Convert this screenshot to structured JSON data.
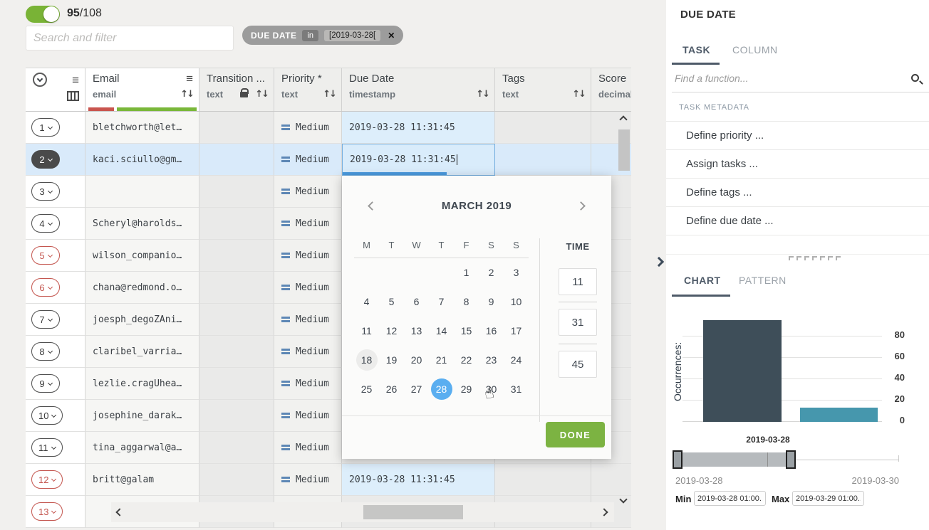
{
  "toolbar": {
    "toggle_count": "95",
    "toggle_total": "/108",
    "search_placeholder": "Search and filter",
    "chip": {
      "field": "DUE DATE",
      "op": "in",
      "value": "[2019-03-28[",
      "close": "✕"
    }
  },
  "table": {
    "columns": [
      {
        "name": "Email",
        "type": "email"
      },
      {
        "name": "Transition ...",
        "type": "text",
        "locked": true
      },
      {
        "name": "Priority *",
        "type": "text"
      },
      {
        "name": "Due Date",
        "type": "timestamp"
      },
      {
        "name": "Tags",
        "type": "text"
      },
      {
        "name": "Score",
        "type": "decimal"
      }
    ],
    "rows": [
      {
        "num": "1",
        "flag": "normal",
        "email": "bletchworth@let…",
        "priority": "Medium",
        "due": "2019-03-28 11:31:45",
        "due_filled": true
      },
      {
        "num": "2",
        "flag": "selected",
        "email": "kaci.sciullo@gm…",
        "priority": "Medium",
        "due": "2019-03-28 11:31:45",
        "editing": true
      },
      {
        "num": "3",
        "flag": "normal",
        "email": "",
        "priority": "Medium",
        "due": ""
      },
      {
        "num": "4",
        "flag": "normal",
        "email": "Scheryl@harolds…",
        "priority": "Medium",
        "due": ""
      },
      {
        "num": "5",
        "flag": "red",
        "email": "wilson_companio…",
        "priority": "Medium",
        "due": ""
      },
      {
        "num": "6",
        "flag": "red",
        "email": "chana@redmond.o…",
        "priority": "Medium",
        "due": ""
      },
      {
        "num": "7",
        "flag": "normal",
        "email": "joesph_degoZAni…",
        "priority": "Medium",
        "due": ""
      },
      {
        "num": "8",
        "flag": "normal",
        "email": "claribel_varria…",
        "priority": "Medium",
        "due": ""
      },
      {
        "num": "9",
        "flag": "normal",
        "email": "lezlie.cragUhea…",
        "priority": "Medium",
        "due": ""
      },
      {
        "num": "10",
        "flag": "normal",
        "email": "josephine_darak…",
        "priority": "Medium",
        "due": ""
      },
      {
        "num": "11",
        "flag": "normal",
        "email": "tina_aggarwal@a…",
        "priority": "Medium",
        "due": ""
      },
      {
        "num": "12",
        "flag": "red",
        "email": "britt@galam",
        "priority": "Medium",
        "due": "2019-03-28 11:31:45",
        "due_filled": true
      },
      {
        "num": "13",
        "flag": "red",
        "email": "",
        "priority": "",
        "due": ""
      }
    ]
  },
  "datepicker": {
    "month_title": "MARCH 2019",
    "weekdays": [
      "M",
      "T",
      "W",
      "T",
      "F",
      "S",
      "S"
    ],
    "days_in_month": 31,
    "start_offset": 4,
    "today_day": 18,
    "selected_day": 28,
    "time_label": "TIME",
    "time_values": [
      "11",
      "31",
      "45"
    ],
    "done_label": "DONE",
    "pointer_icon": "☝"
  },
  "sidebar": {
    "title": "DUE DATE",
    "tabs": {
      "task": "TASK",
      "column": "COLUMN"
    },
    "find_placeholder": "Find a function...",
    "section_header": "TASK METADATA",
    "functions": [
      "Define priority ...",
      "Assign tasks ...",
      "Define tags ...",
      "Define due date ..."
    ],
    "view_tabs": {
      "chart": "CHART",
      "pattern": "PATTERN"
    },
    "slider": {
      "current_label": "2019-03-28",
      "range_start": "2019-03-28",
      "range_end": "2019-03-30",
      "min_label": "Min",
      "min_value": "2019-03-28 01:00...",
      "max_label": "Max",
      "max_value": "2019-03-29 01:00..."
    }
  },
  "chart_data": {
    "type": "bar",
    "categories": [
      "2019-03-28",
      "2019-03-29"
    ],
    "values": [
      95,
      13
    ],
    "title": "",
    "xlabel": "",
    "ylabel": "Occurrences:",
    "yticks": [
      0,
      20,
      40,
      60,
      80
    ],
    "ylim": [
      0,
      100
    ],
    "grid": true,
    "legend": false,
    "colors": [
      "#3e4e59",
      "#4697ad"
    ]
  }
}
